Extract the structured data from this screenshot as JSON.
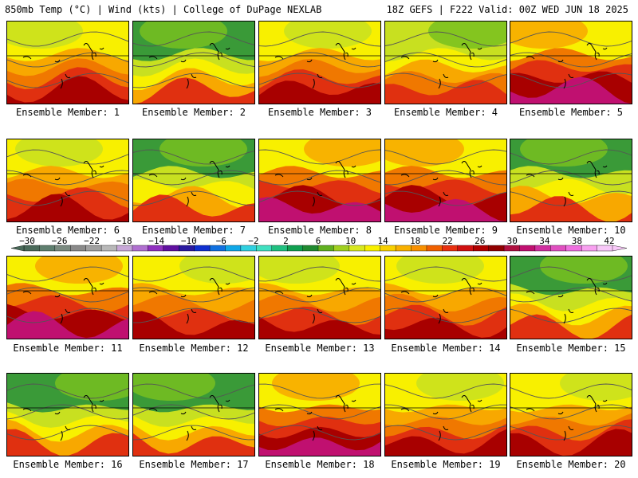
{
  "header": {
    "title_left": "850mb Temp (°C) | Wind (kts) | College of DuPage NEXLAB",
    "title_right": "18Z GEFS | F222 Valid: 00Z WED JUN 18 2025"
  },
  "members": [
    {
      "label": "Ensemble Member: 1",
      "scheme": "warm-south"
    },
    {
      "label": "Ensemble Member: 2",
      "scheme": "cool-north"
    },
    {
      "label": "Ensemble Member: 3",
      "scheme": "warm-south"
    },
    {
      "label": "Ensemble Member: 4",
      "scheme": "mild"
    },
    {
      "label": "Ensemble Member: 5",
      "scheme": "hot"
    },
    {
      "label": "Ensemble Member: 6",
      "scheme": "warm-south"
    },
    {
      "label": "Ensemble Member: 7",
      "scheme": "cool-north"
    },
    {
      "label": "Ensemble Member: 8",
      "scheme": "hot"
    },
    {
      "label": "Ensemble Member: 9",
      "scheme": "hot"
    },
    {
      "label": "Ensemble Member: 10",
      "scheme": "cool-north"
    },
    {
      "label": "Ensemble Member: 11",
      "scheme": "hot"
    },
    {
      "label": "Ensemble Member: 12",
      "scheme": "warm-south"
    },
    {
      "label": "Ensemble Member: 13",
      "scheme": "warm-south"
    },
    {
      "label": "Ensemble Member: 14",
      "scheme": "warm-south"
    },
    {
      "label": "Ensemble Member: 15",
      "scheme": "cool-north"
    },
    {
      "label": "Ensemble Member: 16",
      "scheme": "cool-north"
    },
    {
      "label": "Ensemble Member: 17",
      "scheme": "cool-north"
    },
    {
      "label": "Ensemble Member: 18",
      "scheme": "hot"
    },
    {
      "label": "Ensemble Member: 19",
      "scheme": "warm-south"
    },
    {
      "label": "Ensemble Member: 20",
      "scheme": "warm-south"
    }
  ],
  "colorbar": {
    "tick_labels": [
      "−30",
      "−26",
      "−22",
      "−18",
      "−14",
      "−10",
      "−6",
      "−2",
      "2",
      "6",
      "10",
      "14",
      "18",
      "22",
      "26",
      "30",
      "34",
      "38",
      "42"
    ],
    "colors": [
      "#4a6a5a",
      "#5f7f6f",
      "#7a8a80",
      "#8a8a8a",
      "#a0a0a0",
      "#b8b8b8",
      "#c8a8d8",
      "#b070d0",
      "#9030c0",
      "#6010a0",
      "#2a1aa0",
      "#1030d0",
      "#1070e0",
      "#10a8e8",
      "#30d0e0",
      "#40e0c0",
      "#20c080",
      "#10a050",
      "#208a30",
      "#60b020",
      "#a0d020",
      "#d8e820",
      "#f8f000",
      "#f8d000",
      "#f8b000",
      "#f89000",
      "#f06000",
      "#e83010",
      "#d01010",
      "#b00000",
      "#900000",
      "#b01040",
      "#c01070",
      "#d030a0",
      "#e050c0",
      "#f070e0",
      "#f8a0f0",
      "#f8c8f8"
    ],
    "stops": {
      "cool": "#3a9a38",
      "green": "#78c020",
      "yellowgreen": "#c8e020",
      "yellow": "#f8f000",
      "orange": "#f8a800",
      "darkorange": "#f07800",
      "red": "#e03010",
      "darkred": "#a80000",
      "magenta": "#c01070",
      "pink": "#e050c0"
    }
  }
}
